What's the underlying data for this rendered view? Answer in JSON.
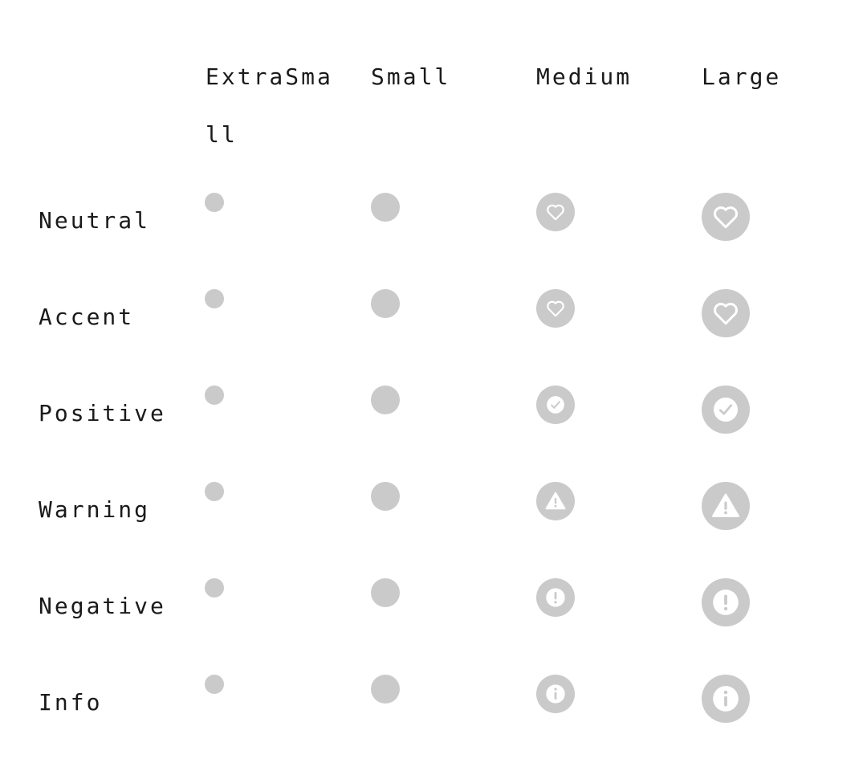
{
  "columns": {
    "extra_small": "ExtraSmall",
    "small": "Small",
    "medium": "Medium",
    "large": "Large"
  },
  "rows": {
    "neutral": {
      "label": "Neutral",
      "icon": "heart-icon"
    },
    "accent": {
      "label": "Accent",
      "icon": "heart-icon"
    },
    "positive": {
      "label": "Positive",
      "icon": "checkmark-icon"
    },
    "warning": {
      "label": "Warning",
      "icon": "warning-triangle-icon"
    },
    "negative": {
      "label": "Negative",
      "icon": "exclamation-icon"
    },
    "info": {
      "label": "Info",
      "icon": "info-icon"
    }
  },
  "colors": {
    "badge_fill": "#cacaca",
    "icon_color": "#ffffff",
    "text": "#1a1a1a"
  }
}
